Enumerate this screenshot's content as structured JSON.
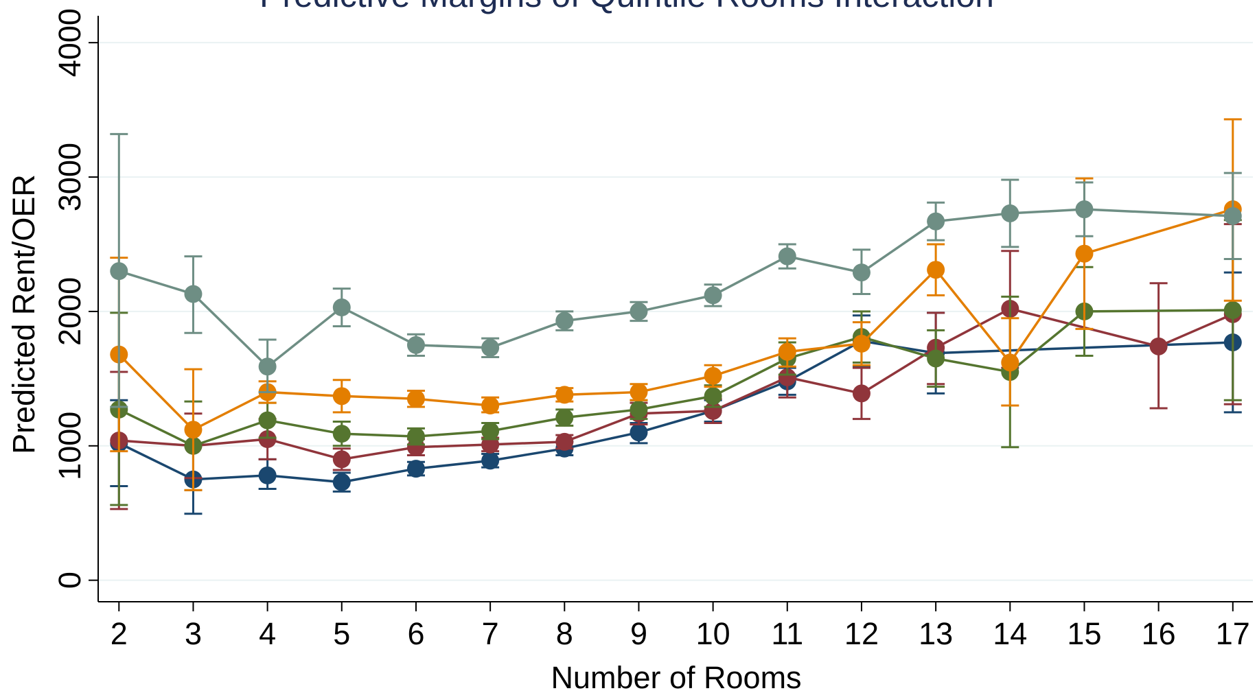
{
  "chart_data": {
    "type": "line",
    "title": "Predictive Margins of Quintile Rooms Interaction",
    "x_label": "Number of Rooms",
    "y_label": "Predicted Rent/OER",
    "xlim": [
      1.72,
      17.27
    ],
    "ylim": [
      -160,
      4200
    ],
    "xticks": [
      2,
      3,
      4,
      5,
      6,
      7,
      8,
      9,
      10,
      11,
      12,
      13,
      14,
      15,
      16,
      17
    ],
    "yticks": [
      0,
      1000,
      2000,
      3000,
      4000
    ],
    "grid": true,
    "series": [
      {
        "color": "#1a476f",
        "x": [
          2,
          3,
          4,
          5,
          6,
          7,
          8,
          9,
          10,
          11,
          12,
          13,
          17
        ],
        "values": [
          1020,
          750,
          780,
          730,
          830,
          890,
          980,
          1100,
          1260,
          1480,
          1780,
          1690,
          1770
        ],
        "lower": [
          700,
          495,
          680,
          660,
          780,
          840,
          930,
          1020,
          1180,
          1380,
          1590,
          1390,
          1250
        ],
        "upper": [
          1340,
          1000,
          900,
          800,
          880,
          940,
          1030,
          1170,
          1340,
          1580,
          1970,
          1990,
          2290
        ]
      },
      {
        "color": "#90353b",
        "x": [
          2,
          3,
          4,
          5,
          6,
          7,
          8,
          9,
          10,
          11,
          12,
          13,
          14,
          16,
          17
        ],
        "values": [
          1040,
          1000,
          1050,
          900,
          990,
          1010,
          1030,
          1240,
          1260,
          1510,
          1390,
          1730,
          2020,
          1740,
          1980
        ],
        "lower": [
          530,
          760,
          900,
          820,
          930,
          960,
          980,
          1160,
          1170,
          1360,
          1200,
          1460,
          1580,
          1280,
          1310
        ],
        "upper": [
          1550,
          1240,
          1200,
          980,
          1050,
          1060,
          1080,
          1320,
          1350,
          1660,
          1580,
          1990,
          2450,
          2210,
          2650
        ]
      },
      {
        "color": "#55752f",
        "x": [
          2,
          3,
          4,
          5,
          6,
          7,
          8,
          9,
          10,
          11,
          12,
          13,
          14,
          15,
          17
        ],
        "values": [
          1270,
          1000,
          1190,
          1090,
          1070,
          1110,
          1210,
          1270,
          1370,
          1650,
          1810,
          1650,
          1550,
          2000,
          2010
        ],
        "lower": [
          560,
          670,
          1060,
          1000,
          1010,
          1050,
          1150,
          1200,
          1290,
          1530,
          1620,
          1440,
          990,
          1670,
          1340
        ],
        "upper": [
          1990,
          1330,
          1320,
          1180,
          1130,
          1170,
          1270,
          1340,
          1450,
          1770,
          2000,
          1860,
          2110,
          2330,
          2680
        ]
      },
      {
        "color": "#e37e00",
        "x": [
          2,
          3,
          4,
          5,
          6,
          7,
          8,
          9,
          10,
          11,
          12,
          13,
          14,
          15,
          17
        ],
        "values": [
          1680,
          1120,
          1400,
          1370,
          1350,
          1300,
          1380,
          1400,
          1520,
          1700,
          1760,
          2310,
          1620,
          2430,
          2760
        ],
        "lower": [
          960,
          670,
          1320,
          1250,
          1290,
          1250,
          1330,
          1340,
          1440,
          1590,
          1600,
          2120,
          1300,
          1870,
          2080
        ],
        "upper": [
          2400,
          1570,
          1480,
          1490,
          1410,
          1360,
          1430,
          1460,
          1600,
          1800,
          1920,
          2500,
          1950,
          2990,
          3430
        ]
      },
      {
        "color": "#6e8e84",
        "x": [
          2,
          3,
          4,
          5,
          6,
          7,
          8,
          9,
          10,
          11,
          12,
          13,
          14,
          15,
          17
        ],
        "values": [
          2300,
          2130,
          1590,
          2030,
          1750,
          1730,
          1930,
          2000,
          2120,
          2410,
          2290,
          2670,
          2730,
          2760,
          2710
        ],
        "lower": [
          1290,
          1840,
          1400,
          1890,
          1670,
          1660,
          1860,
          1930,
          2040,
          2320,
          2130,
          2530,
          2480,
          2560,
          2390
        ],
        "upper": [
          3320,
          2410,
          1790,
          2170,
          1830,
          1800,
          2000,
          2070,
          2200,
          2500,
          2460,
          2810,
          2980,
          2960,
          3030
        ]
      }
    ]
  }
}
